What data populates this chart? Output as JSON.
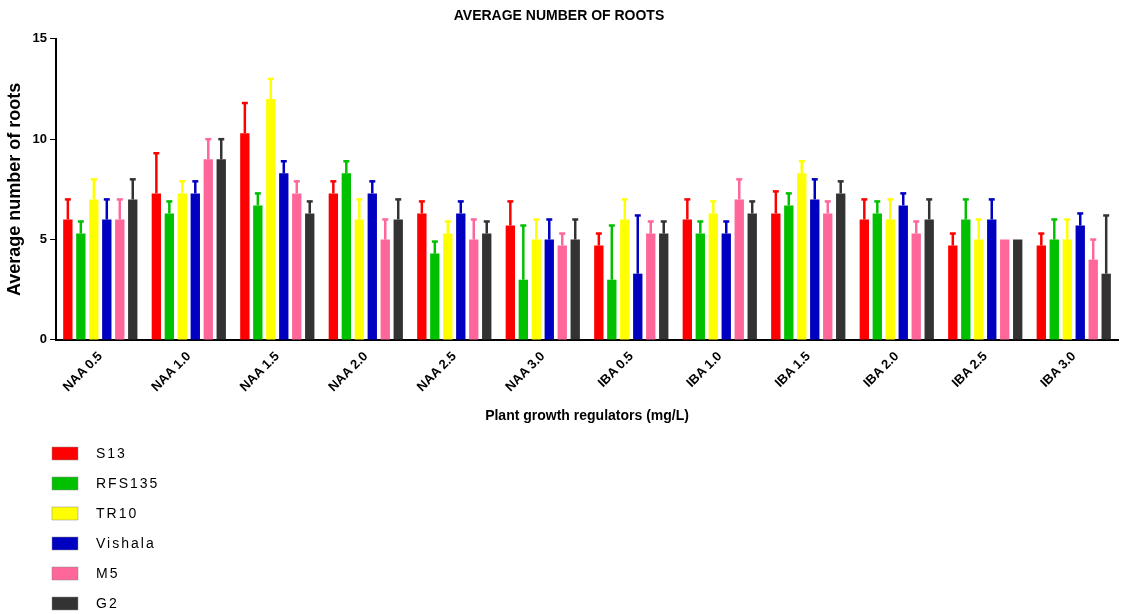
{
  "chart_data": {
    "type": "bar",
    "title": "AVERAGE NUMBER OF ROOTS",
    "xlabel": "Plant growth regulators (mg/L)",
    "ylabel": "Average number of roots",
    "categories": [
      "NAA 0.5",
      "NAA 1.0",
      "NAA 1.5",
      "NAA 2.0",
      "NAA 2.5",
      "NAA 3.0",
      "IBA 0.5",
      "IBA 1.0",
      "IBA 1.5",
      "IBA 2.0",
      "IBA 2.5",
      "IBA 3.0"
    ],
    "series": [
      {
        "name": "S13",
        "color": "#ff0000",
        "values": [
          6,
          7.3,
          10.3,
          7.3,
          6.3,
          5.7,
          4.7,
          6,
          6.3,
          6,
          4.7,
          4.7
        ],
        "errors": [
          [
            6,
            7
          ],
          [
            7.3,
            9.3
          ],
          [
            10.3,
            11.8
          ],
          [
            7.3,
            7.9
          ],
          [
            6.3,
            6.9
          ],
          [
            5.7,
            6.9
          ],
          [
            4.7,
            5.3
          ],
          [
            6,
            7
          ],
          [
            6.3,
            7.4
          ],
          [
            6,
            7
          ],
          [
            4.7,
            5.3
          ],
          [
            4.7,
            5.3
          ]
        ]
      },
      {
        "name": "RFS135",
        "color": "#00c000",
        "values": [
          5.3,
          6.3,
          6.7,
          8.3,
          4.3,
          3,
          3,
          5.3,
          6.7,
          6.3,
          6,
          5
        ],
        "errors": [
          [
            5.3,
            5.9
          ],
          [
            6.3,
            6.9
          ],
          [
            6.7,
            7.3
          ],
          [
            8.3,
            8.9
          ],
          [
            4.3,
            4.9
          ],
          [
            3,
            5.7
          ],
          [
            3,
            5.7
          ],
          [
            5.3,
            5.9
          ],
          [
            6.7,
            7.3
          ],
          [
            6.3,
            6.9
          ],
          [
            6,
            7
          ],
          [
            5,
            6
          ]
        ]
      },
      {
        "name": "TR10",
        "color": "#ffff00",
        "values": [
          7,
          7.3,
          12,
          6,
          5.3,
          5,
          6,
          6.3,
          8.3,
          6,
          5,
          5
        ],
        "errors": [
          [
            7,
            8
          ],
          [
            7.3,
            7.9
          ],
          [
            12,
            13
          ],
          [
            6,
            7
          ],
          [
            5.3,
            5.9
          ],
          [
            5,
            6
          ],
          [
            6,
            7
          ],
          [
            6.3,
            6.9
          ],
          [
            8.3,
            8.9
          ],
          [
            6,
            7
          ],
          [
            5,
            6
          ],
          [
            5,
            6
          ]
        ]
      },
      {
        "name": "Vishala",
        "color": "#0000c0",
        "values": [
          6,
          7.3,
          8.3,
          7.3,
          6.3,
          5,
          3.3,
          5.3,
          7,
          6.7,
          6,
          5.7
        ],
        "errors": [
          [
            6,
            7
          ],
          [
            7.3,
            7.9
          ],
          [
            8.3,
            8.9
          ],
          [
            7.3,
            7.9
          ],
          [
            6.3,
            6.9
          ],
          [
            5,
            6
          ],
          [
            3.3,
            6.2
          ],
          [
            5.3,
            5.9
          ],
          [
            7,
            8
          ],
          [
            6.7,
            7.3
          ],
          [
            6,
            7
          ],
          [
            5.7,
            6.3
          ]
        ]
      },
      {
        "name": "M5",
        "color": "#ff6699",
        "values": [
          6,
          9,
          7.3,
          5,
          5,
          4.7,
          5.3,
          7,
          6.3,
          5.3,
          5,
          4
        ],
        "errors": [
          [
            6,
            7
          ],
          [
            9,
            10
          ],
          [
            7.3,
            7.9
          ],
          [
            5,
            6
          ],
          [
            5,
            6
          ],
          [
            4.7,
            5.3
          ],
          [
            5.3,
            5.9
          ],
          [
            7,
            8
          ],
          [
            6.3,
            6.9
          ],
          [
            5.3,
            5.9
          ],
          null,
          [
            4,
            5
          ]
        ]
      },
      {
        "name": "G2",
        "color": "#333333",
        "values": [
          7,
          9,
          6.3,
          6,
          5.3,
          5,
          5.3,
          6.3,
          7.3,
          6,
          5,
          3.3
        ],
        "errors": [
          [
            7,
            8
          ],
          [
            9,
            10
          ],
          [
            6.3,
            6.9
          ],
          [
            6,
            7
          ],
          [
            5.3,
            5.9
          ],
          [
            5,
            6
          ],
          [
            5.3,
            5.9
          ],
          [
            6.3,
            6.9
          ],
          [
            7.3,
            7.9
          ],
          [
            6,
            7
          ],
          null,
          [
            3.3,
            6.2
          ]
        ]
      }
    ],
    "ylim": [
      0,
      15
    ],
    "yticks": [
      0,
      5,
      10,
      15
    ],
    "grid": false,
    "legend": "bottom"
  }
}
